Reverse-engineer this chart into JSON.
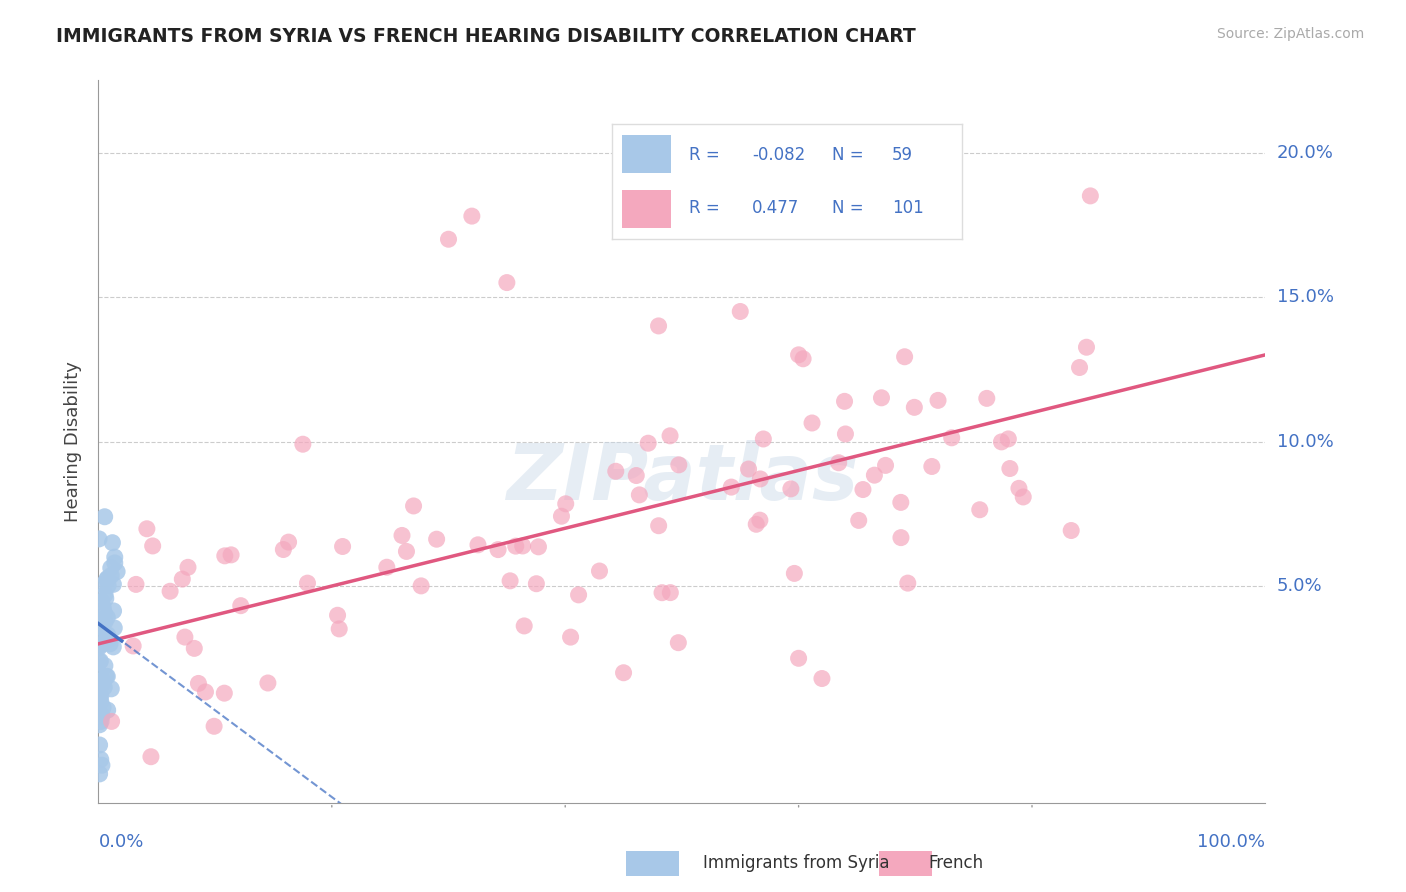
{
  "title": "IMMIGRANTS FROM SYRIA VS FRENCH HEARING DISABILITY CORRELATION CHART",
  "source": "Source: ZipAtlas.com",
  "ylabel": "Hearing Disability",
  "blue_color": "#a8c8e8",
  "pink_color": "#f4a8be",
  "blue_line_color": "#4472c4",
  "pink_line_color": "#e05880",
  "title_color": "#222222",
  "axis_label_color": "#4472c4",
  "watermark": "ZIPatlas",
  "background_color": "#ffffff",
  "xlim": [
    0.0,
    1.0
  ],
  "ylim": [
    -0.025,
    0.225
  ],
  "ytick_positions": [
    0.0,
    0.05,
    0.1,
    0.15,
    0.2
  ],
  "ytick_labels": [
    "",
    "5.0%",
    "10.0%",
    "15.0%",
    "20.0%"
  ],
  "legend_blue_r": "-0.082",
  "legend_blue_n": "59",
  "legend_pink_r": "0.477",
  "legend_pink_n": "101"
}
